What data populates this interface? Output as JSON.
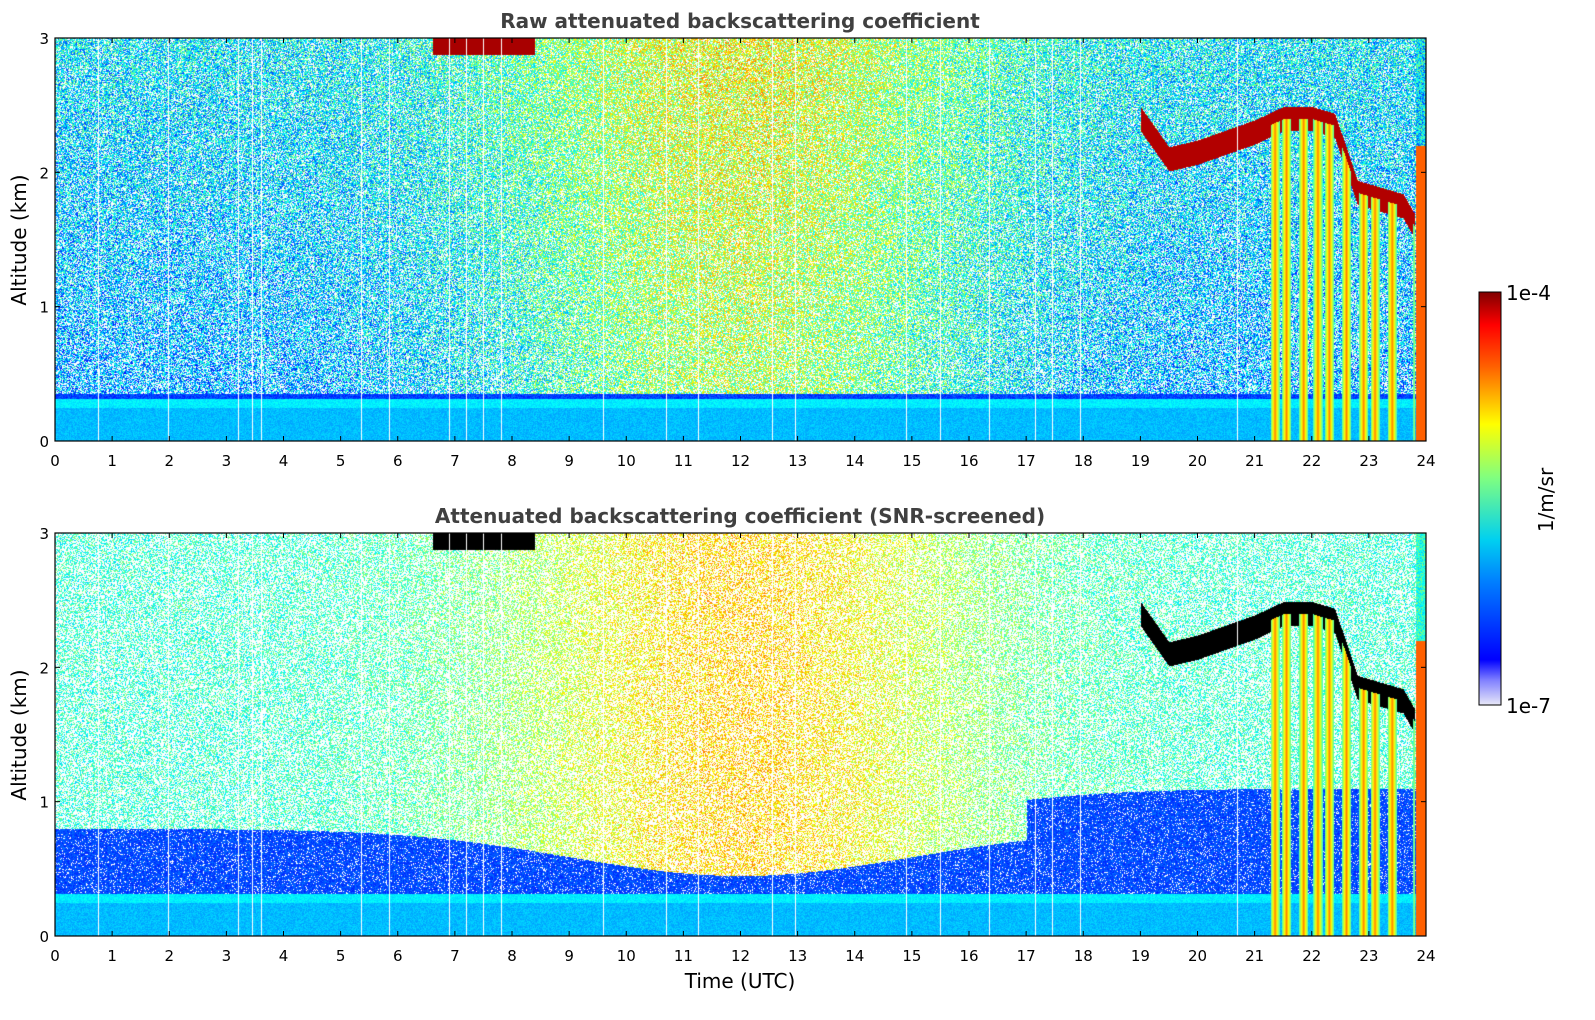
{
  "chart_data": [
    {
      "type": "heatmap",
      "title": "Raw attenuated backscattering coefficient",
      "xlabel": "",
      "ylabel": "Altitude (km)",
      "xlim": [
        0,
        24
      ],
      "ylim": [
        0,
        3
      ],
      "x_ticks": [
        "0",
        "1",
        "2",
        "3",
        "4",
        "5",
        "6",
        "7",
        "8",
        "9",
        "10",
        "11",
        "12",
        "13",
        "14",
        "15",
        "16",
        "17",
        "18",
        "19",
        "20",
        "21",
        "22",
        "23",
        "24"
      ],
      "y_ticks": [
        "0",
        "1",
        "2",
        "3"
      ],
      "features": {
        "boundary_layer_top_km": 0.35,
        "residual_cloud_top": {
          "x": [
            6.6,
            8.4
          ],
          "y": [
            2.85,
            3.0
          ]
        },
        "cloud_layer": {
          "x": [
            19.0,
            19.5,
            20.0,
            21.0,
            21.5,
            22.0,
            22.4,
            22.8,
            23.2,
            23.6,
            23.8
          ],
          "y": [
            2.4,
            2.1,
            2.15,
            2.3,
            2.4,
            2.4,
            2.35,
            1.85,
            1.8,
            1.75,
            1.6
          ]
        },
        "rain_columns_hours": [
          21.35,
          21.55,
          21.85,
          22.1,
          22.3,
          22.6,
          22.9,
          23.1,
          23.4,
          23.85
        ]
      }
    },
    {
      "type": "heatmap",
      "title": "Attenuated backscattering coefficient (SNR-screened)",
      "xlabel": "Time (UTC)",
      "ylabel": "Altitude (km)",
      "xlim": [
        0,
        24
      ],
      "ylim": [
        0,
        3
      ],
      "x_ticks": [
        "0",
        "1",
        "2",
        "3",
        "4",
        "5",
        "6",
        "7",
        "8",
        "9",
        "10",
        "11",
        "12",
        "13",
        "14",
        "15",
        "16",
        "17",
        "18",
        "19",
        "20",
        "21",
        "22",
        "23",
        "24"
      ],
      "y_ticks": [
        "0",
        "1",
        "2",
        "3"
      ],
      "features": {
        "boundary_layer_top_km": 0.9,
        "residual_cloud_top": {
          "x": [
            6.6,
            8.4
          ],
          "y": [
            2.85,
            3.0
          ]
        },
        "cloud_layer": {
          "x": [
            19.0,
            19.5,
            20.0,
            21.0,
            21.5,
            22.0,
            22.4,
            22.8,
            23.2,
            23.6,
            23.8
          ],
          "y": [
            2.4,
            2.1,
            2.15,
            2.3,
            2.4,
            2.4,
            2.35,
            1.85,
            1.8,
            1.75,
            1.6
          ]
        },
        "rain_columns_hours": [
          21.35,
          21.55,
          21.85,
          22.1,
          22.3,
          22.6,
          22.9,
          23.1,
          23.4,
          23.85
        ]
      }
    }
  ],
  "colorbar": {
    "label": "1/m/sr",
    "max_label": "1e-4",
    "min_label": "1e-7",
    "colormap": "jet"
  }
}
